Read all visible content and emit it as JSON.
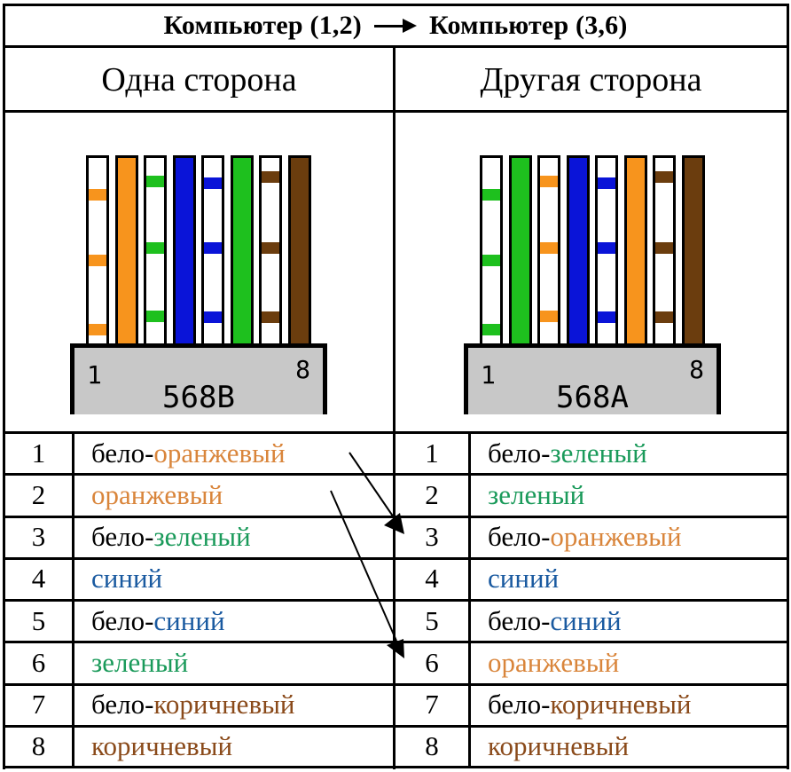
{
  "header": {
    "from_label": "Компьютер (1,2)",
    "to_label": "Компьютер (3,6)",
    "arrow_icon": "right-arrow-icon"
  },
  "sides": {
    "left_label": "Одна сторона",
    "right_label": "Другая сторона"
  },
  "connectors": {
    "left": {
      "standard": "568B",
      "pin_first": "1",
      "pin_last": "8"
    },
    "right": {
      "standard": "568A",
      "pin_first": "1",
      "pin_last": "8"
    }
  },
  "colors": {
    "orange": "#f7941d",
    "green": "#1ec01e",
    "blue": "#0a14d8",
    "brown": "#6b3d0e",
    "connector_gray": "#c8c8c8",
    "text_orange": "#d9853b",
    "text_green": "#1a9a5a",
    "text_blue": "#1a5aa0",
    "text_brown": "#8a4a1a"
  },
  "left_table": [
    {
      "pin": "1",
      "prefix": "бело-",
      "color_name": "оранжевый",
      "color": "orange"
    },
    {
      "pin": "2",
      "prefix": "",
      "color_name": "оранжевый",
      "color": "orange"
    },
    {
      "pin": "3",
      "prefix": "бело-",
      "color_name": "зеленый",
      "color": "green"
    },
    {
      "pin": "4",
      "prefix": "",
      "color_name": "синий",
      "color": "blue"
    },
    {
      "pin": "5",
      "prefix": "бело-",
      "color_name": "синий",
      "color": "blue"
    },
    {
      "pin": "6",
      "prefix": "",
      "color_name": "зеленый",
      "color": "green"
    },
    {
      "pin": "7",
      "prefix": "бело-",
      "color_name": "коричневый",
      "color": "brown"
    },
    {
      "pin": "8",
      "prefix": "",
      "color_name": "коричневый",
      "color": "brown"
    }
  ],
  "right_table": [
    {
      "pin": "1",
      "prefix": "бело-",
      "color_name": "зеленый",
      "color": "green"
    },
    {
      "pin": "2",
      "prefix": "",
      "color_name": "зеленый",
      "color": "green"
    },
    {
      "pin": "3",
      "prefix": "бело-",
      "color_name": "оранжевый",
      "color": "orange"
    },
    {
      "pin": "4",
      "prefix": "",
      "color_name": "синий",
      "color": "blue"
    },
    {
      "pin": "5",
      "prefix": "бело-",
      "color_name": "синий",
      "color": "blue"
    },
    {
      "pin": "6",
      "prefix": "",
      "color_name": "оранжевый",
      "color": "orange"
    },
    {
      "pin": "7",
      "prefix": "бело-",
      "color_name": "коричневый",
      "color": "brown"
    },
    {
      "pin": "8",
      "prefix": "",
      "color_name": "коричневый",
      "color": "brown"
    }
  ],
  "left_wires": [
    {
      "pin": 1,
      "type": "striped",
      "color": "orange"
    },
    {
      "pin": 2,
      "type": "solid",
      "color": "orange"
    },
    {
      "pin": 3,
      "type": "striped",
      "color": "green"
    },
    {
      "pin": 4,
      "type": "solid",
      "color": "blue"
    },
    {
      "pin": 5,
      "type": "striped",
      "color": "blue"
    },
    {
      "pin": 6,
      "type": "solid",
      "color": "green"
    },
    {
      "pin": 7,
      "type": "striped",
      "color": "brown"
    },
    {
      "pin": 8,
      "type": "solid",
      "color": "brown"
    }
  ],
  "right_wires": [
    {
      "pin": 1,
      "type": "striped",
      "color": "green"
    },
    {
      "pin": 2,
      "type": "solid",
      "color": "green"
    },
    {
      "pin": 3,
      "type": "striped",
      "color": "orange"
    },
    {
      "pin": 4,
      "type": "solid",
      "color": "blue"
    },
    {
      "pin": 5,
      "type": "striped",
      "color": "blue"
    },
    {
      "pin": 6,
      "type": "solid",
      "color": "orange"
    },
    {
      "pin": 7,
      "type": "striped",
      "color": "brown"
    },
    {
      "pin": 8,
      "type": "solid",
      "color": "brown"
    }
  ],
  "crossover_arrows": [
    {
      "from_left_pin": 1,
      "to_right_pin": 3
    },
    {
      "from_left_pin": 2,
      "to_right_pin": 6
    }
  ]
}
